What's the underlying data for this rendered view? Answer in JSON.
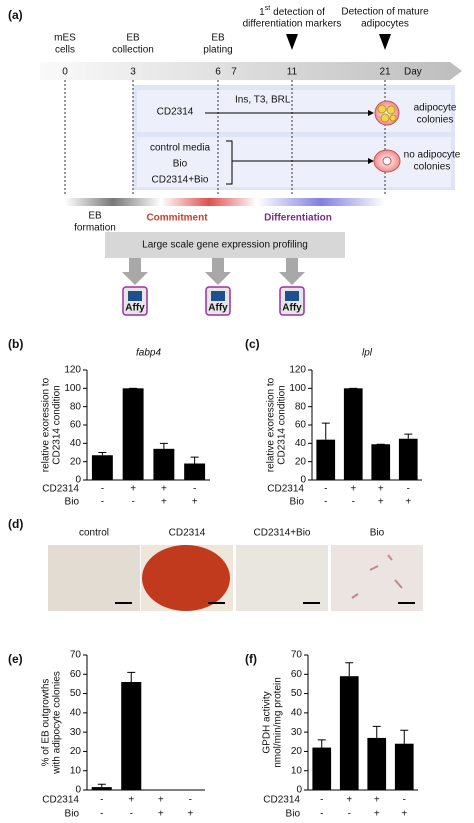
{
  "figure": {
    "panel_labels": [
      "(a)",
      "(b)",
      "(c)",
      "(d)",
      "(e)",
      "(f)"
    ],
    "timeline": {
      "days": [
        0,
        3,
        6,
        7,
        11,
        21
      ],
      "day_label": "Day",
      "mes": [
        "mES",
        "cells"
      ],
      "eb_collection": [
        "EB",
        "collection"
      ],
      "eb_plating": [
        "EB",
        "plating"
      ],
      "first_detection": {
        "ordinal": "1",
        "suffix": "st",
        "lines": [
          "detection of",
          "differentiation markers"
        ]
      },
      "mature": [
        "Detection of mature",
        "adipocytes"
      ],
      "row1": {
        "treatment": "CD2314",
        "media": "Ins, T3, BRL",
        "outcome": [
          "adipocyte",
          "colonies"
        ]
      },
      "row2": {
        "treatments": [
          "control media",
          "Bio",
          "CD2314+Bio"
        ],
        "outcome": [
          "no adipocyte",
          "colonies"
        ]
      },
      "phases": {
        "eb_formation": [
          "EB",
          "formation"
        ],
        "commitment": "Commitment",
        "differentiation": "Differentiation"
      },
      "profiling": "Large scale gene expression profiling",
      "chips": [
        "Affy",
        "Affy",
        "Affy"
      ]
    },
    "micrographs": [
      "control",
      "CD2314",
      "CD2314+Bio",
      "Bio"
    ]
  },
  "chart_data": [
    {
      "type": "bar",
      "title": "fabp4",
      "ylabel": [
        "relative exoression to",
        "CD2314 condition"
      ],
      "categories": [
        null,
        null,
        null,
        null
      ],
      "values": [
        27,
        100,
        34,
        18
      ],
      "errors": [
        3,
        0,
        6,
        7
      ],
      "color": "#000000",
      "ylim": [
        0,
        120
      ],
      "yticks": [
        0,
        20,
        40,
        60,
        80,
        100,
        120
      ],
      "treatments": [
        {
          "name": "CD2314",
          "signs": [
            "-",
            "+",
            "+",
            "-"
          ]
        },
        {
          "name": "Bio",
          "signs": [
            "-",
            "-",
            "+",
            "+"
          ]
        }
      ]
    },
    {
      "type": "bar",
      "title": "lpl",
      "ylabel": [
        "relative exoression to",
        "CD2314 condition"
      ],
      "categories": [
        null,
        null,
        null,
        null
      ],
      "values": [
        44,
        100,
        39,
        45
      ],
      "errors": [
        18,
        0,
        0,
        5
      ],
      "color": "#000000",
      "ylim": [
        0,
        120
      ],
      "yticks": [
        0,
        20,
        40,
        60,
        80,
        100,
        120
      ],
      "treatments": [
        {
          "name": "CD2314",
          "signs": [
            "-",
            "+",
            "+",
            "-"
          ]
        },
        {
          "name": "Bio",
          "signs": [
            "-",
            "-",
            "+",
            "+"
          ]
        }
      ]
    },
    {
      "type": "bar",
      "ylabel": [
        "% of EB outgrowths",
        "with adipocyte colonies"
      ],
      "categories": [
        null,
        null,
        null,
        null
      ],
      "values": [
        1.5,
        56,
        0,
        0
      ],
      "errors": [
        1.5,
        5,
        0,
        0
      ],
      "color": "#000000",
      "ylim": [
        0,
        70
      ],
      "yticks": [
        0,
        10,
        20,
        30,
        40,
        50,
        60,
        70
      ],
      "treatments": [
        {
          "name": "CD2314",
          "signs": [
            "-",
            "+",
            "+",
            "-"
          ]
        },
        {
          "name": "Bio",
          "signs": [
            "-",
            "-",
            "+",
            "+"
          ]
        }
      ]
    },
    {
      "type": "bar",
      "ylabel": [
        "GPDH activity",
        "nmol/min/mg protein"
      ],
      "categories": [
        null,
        null,
        null,
        null
      ],
      "values": [
        22,
        59,
        27,
        24
      ],
      "errors": [
        4,
        7,
        6,
        7
      ],
      "color": "#000000",
      "ylim": [
        0,
        70
      ],
      "yticks": [
        0,
        10,
        20,
        30,
        40,
        50,
        60,
        70
      ],
      "treatments": [
        {
          "name": "CD2314",
          "signs": [
            "-",
            "+",
            "+",
            "-"
          ]
        },
        {
          "name": "Bio",
          "signs": [
            "-",
            "-",
            "+",
            "+"
          ]
        }
      ]
    }
  ]
}
